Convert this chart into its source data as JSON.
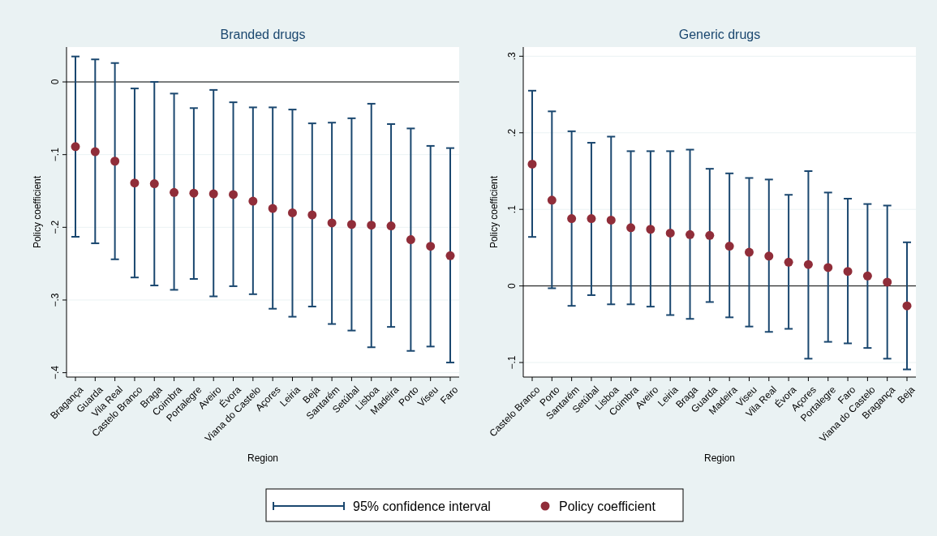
{
  "chart_data": [
    {
      "type": "scatter",
      "title": "Branded drugs",
      "xlabel": "Region",
      "ylabel": "Policy coefficient",
      "categories": [
        "Bragança",
        "Guarda",
        "Vila Real",
        "Castelo Branco",
        "Braga",
        "Coimbra",
        "Portalegre",
        "Aveiro",
        "Évora",
        "Viana do Castelo",
        "Açores",
        "Leiria",
        "Beja",
        "Santarém",
        "Setúbal",
        "Lisboa",
        "Madeira",
        "Porto",
        "Viseu",
        "Faro"
      ],
      "series": [
        {
          "name": "Policy coefficient",
          "color": "#902d39",
          "values": [
            -0.089,
            -0.096,
            -0.109,
            -0.139,
            -0.14,
            -0.152,
            -0.153,
            -0.154,
            -0.155,
            -0.164,
            -0.174,
            -0.18,
            -0.183,
            -0.194,
            -0.196,
            -0.197,
            -0.198,
            -0.217,
            -0.226,
            -0.239
          ],
          "errors": [
            [
              -0.213,
              0.035
            ],
            [
              -0.222,
              0.031
            ],
            [
              -0.244,
              0.026
            ],
            [
              -0.269,
              -0.009
            ],
            [
              -0.28,
              0.0
            ],
            [
              -0.286,
              -0.016
            ],
            [
              -0.271,
              -0.036
            ],
            [
              -0.295,
              -0.011
            ],
            [
              -0.281,
              -0.028
            ],
            [
              -0.292,
              -0.035
            ],
            [
              -0.312,
              -0.035
            ],
            [
              -0.323,
              -0.038
            ],
            [
              -0.309,
              -0.057
            ],
            [
              -0.333,
              -0.056
            ],
            [
              -0.342,
              -0.05
            ],
            [
              -0.365,
              -0.03
            ],
            [
              -0.337,
              -0.058
            ],
            [
              -0.37,
              -0.064
            ],
            [
              -0.364,
              -0.088
            ],
            [
              -0.386,
              -0.091
            ]
          ]
        }
      ],
      "annotations": [
        "95% confidence interval"
      ],
      "ylim": [
        -0.406,
        0.048
      ],
      "yticks": [
        {
          "value": -0.4,
          "label": "−.4"
        },
        {
          "value": -0.3,
          "label": "−.3"
        },
        {
          "value": -0.2,
          "label": "−.2"
        },
        {
          "value": -0.1,
          "label": "−.1"
        },
        0
      ],
      "ref_lines": [
        {
          "axis": "y",
          "value": 0,
          "color": "#000000"
        }
      ],
      "grid": "y",
      "legend": "bottom",
      "marker": "circle"
    },
    {
      "type": "scatter",
      "title": "Generic drugs",
      "xlabel": "Region",
      "ylabel": "Policy coefficient",
      "categories": [
        "Castelo Branco",
        "Porto",
        "Santarém",
        "Setúbal",
        "Lisboa",
        "Coimbra",
        "Aveiro",
        "Leiria",
        "Braga",
        "Guarda",
        "Madeira",
        "Viseu",
        "Vila Real",
        "Évora",
        "Açores",
        "Portalegre",
        "Faro",
        "Viana do Castelo",
        "Bragança",
        "Beja"
      ],
      "series": [
        {
          "color": "#902d39",
          "values": [
            0.159,
            0.112,
            0.088,
            0.088,
            0.086,
            0.076,
            0.074,
            0.069,
            0.067,
            0.066,
            0.052,
            0.044,
            0.039,
            0.031,
            0.028,
            0.024,
            0.019,
            0.013,
            0.005,
            -0.026
          ],
          "errors": [
            [
              0.064,
              0.255
            ],
            [
              -0.003,
              0.228
            ],
            [
              -0.026,
              0.202
            ],
            [
              -0.012,
              0.187
            ],
            [
              -0.024,
              0.195
            ],
            [
              -0.024,
              0.176
            ],
            [
              -0.027,
              0.176
            ],
            [
              -0.038,
              0.176
            ],
            [
              -0.043,
              0.178
            ],
            [
              -0.021,
              0.153
            ],
            [
              -0.041,
              0.147
            ],
            [
              -0.053,
              0.141
            ],
            [
              -0.06,
              0.139
            ],
            [
              -0.056,
              0.119
            ],
            [
              -0.095,
              0.15
            ],
            [
              -0.073,
              0.122
            ],
            [
              -0.075,
              0.114
            ],
            [
              -0.081,
              0.107
            ],
            [
              -0.095,
              0.105
            ],
            [
              -0.109,
              0.057
            ]
          ]
        }
      ],
      "ylim": [
        -0.119,
        0.312
      ],
      "yticks": [
        {
          "value": -0.1,
          "label": "−.1"
        },
        0,
        {
          "value": 0.1,
          "label": ".1"
        },
        {
          "value": 0.2,
          "label": ".2"
        },
        {
          "value": 0.3,
          "label": ".3"
        }
      ],
      "ref_lines": [
        {
          "axis": "y",
          "value": 0,
          "color": "#000000"
        }
      ],
      "grid": "y",
      "marker": "circle"
    }
  ]
}
